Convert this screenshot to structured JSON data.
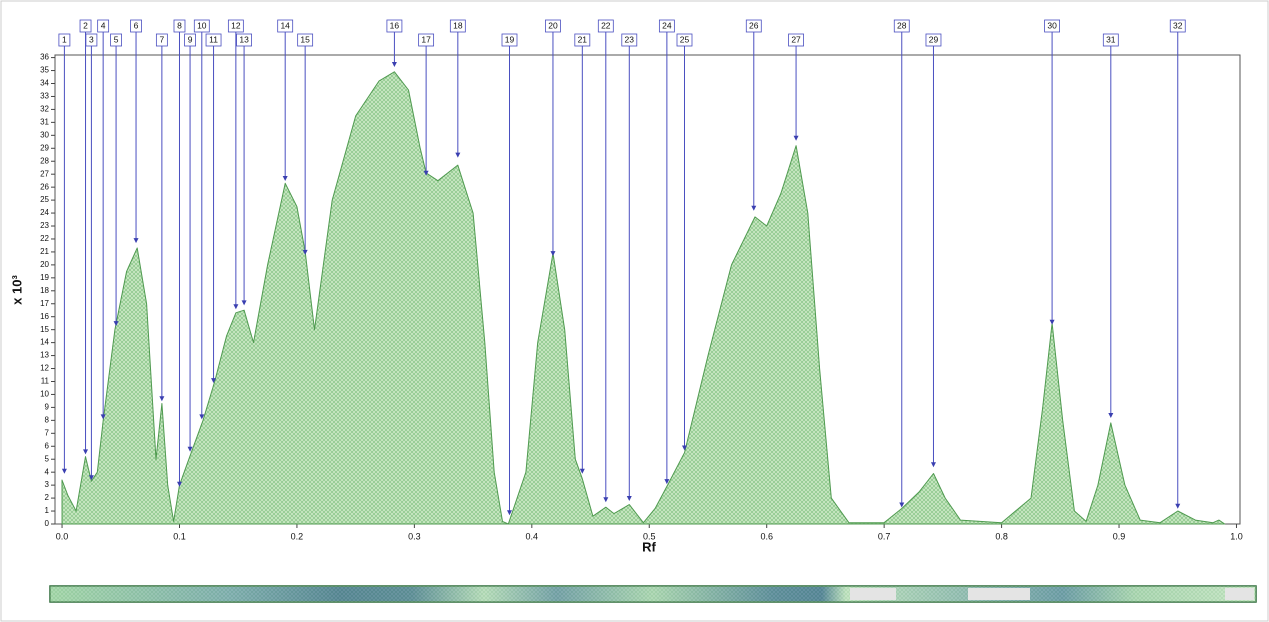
{
  "chart_data": {
    "type": "area",
    "ylabel": "x 10³",
    "xlabel": "Rf",
    "xlim": [
      -0.006,
      1.003
    ],
    "ylim": [
      0,
      36.2
    ],
    "xticks": [
      {
        "value": 0,
        "label": "0.0"
      },
      0.1,
      0.2,
      0.3,
      0.4,
      0.5,
      0.6,
      0.7,
      0.8,
      0.9,
      {
        "value": 1,
        "label": "1.0"
      }
    ],
    "yticks": [
      0,
      1,
      2,
      3,
      4,
      5,
      6,
      7,
      8,
      9,
      10,
      11,
      12,
      13,
      14,
      15,
      16,
      17,
      18,
      19,
      20,
      21,
      22,
      23,
      24,
      25,
      26,
      27,
      28,
      29,
      30,
      31,
      32,
      33,
      34,
      35,
      36
    ],
    "color": "#4f9a4f",
    "x": [
      0,
      0.005,
      0.012,
      0.02,
      0.025,
      0.03,
      0.035,
      0.045,
      0.055,
      0.064,
      0.072,
      0.08,
      0.085,
      0.09,
      0.095,
      0.1,
      0.11,
      0.12,
      0.13,
      0.14,
      0.148,
      0.155,
      0.163,
      0.175,
      0.19,
      0.2,
      0.207,
      0.215,
      0.23,
      0.25,
      0.27,
      0.283,
      0.295,
      0.305,
      0.31,
      0.32,
      0.337,
      0.35,
      0.36,
      0.368,
      0.375,
      0.38,
      0.395,
      0.405,
      0.418,
      0.428,
      0.437,
      0.443,
      0.452,
      0.463,
      0.47,
      0.483,
      0.495,
      0.505,
      0.515,
      0.53,
      0.55,
      0.57,
      0.59,
      0.6,
      0.612,
      0.625,
      0.635,
      0.645,
      0.655,
      0.67,
      0.7,
      0.715,
      0.73,
      0.742,
      0.752,
      0.765,
      0.8,
      0.825,
      0.835,
      0.843,
      0.852,
      0.862,
      0.872,
      0.882,
      0.893,
      0.905,
      0.918,
      0.935,
      0.95,
      0.965,
      0.98,
      0.985,
      0.99
    ],
    "values": [
      3.4,
      2.2,
      1.0,
      5.2,
      3.3,
      4.0,
      8.0,
      15.0,
      19.5,
      21.3,
      17.0,
      5.0,
      9.3,
      3.0,
      0.2,
      3.0,
      5.5,
      8.0,
      11.0,
      14.5,
      16.3,
      16.5,
      14.0,
      20.0,
      26.3,
      24.5,
      21.0,
      15.0,
      25.0,
      31.5,
      34.2,
      34.9,
      33.5,
      29.0,
      27.1,
      26.5,
      27.7,
      24.0,
      14.0,
      4.0,
      0.2,
      0.0,
      4.0,
      14.0,
      20.9,
      15.0,
      5.0,
      3.5,
      0.6,
      1.3,
      0.8,
      1.5,
      0.1,
      1.2,
      2.9,
      5.5,
      13.0,
      20.0,
      23.7,
      23.0,
      25.5,
      29.2,
      24.0,
      12.0,
      2.0,
      0.1,
      0.1,
      1.2,
      2.5,
      3.9,
      2.0,
      0.3,
      0.1,
      2.0,
      9.0,
      15.5,
      8.0,
      1.0,
      0.2,
      3.0,
      7.8,
      3.0,
      0.3,
      0.1,
      1.0,
      0.3,
      0.1,
      0.3,
      0.0
    ],
    "peaks": [
      {
        "label": "1",
        "x": 0.002,
        "y": 3.8
      },
      {
        "label": "2",
        "x": 0.02,
        "y": 5.3
      },
      {
        "label": "3",
        "x": 0.025,
        "y": 3.3
      },
      {
        "label": "4",
        "x": 0.035,
        "y": 8.0
      },
      {
        "label": "5",
        "x": 0.046,
        "y": 15.2
      },
      {
        "label": "6",
        "x": 0.063,
        "y": 21.6
      },
      {
        "label": "7",
        "x": 0.085,
        "y": 9.4
      },
      {
        "label": "8",
        "x": 0.1,
        "y": 2.8
      },
      {
        "label": "9",
        "x": 0.109,
        "y": 5.5
      },
      {
        "label": "10",
        "x": 0.119,
        "y": 8.0
      },
      {
        "label": "11",
        "x": 0.129,
        "y": 10.8
      },
      {
        "label": "12",
        "x": 0.148,
        "y": 16.5
      },
      {
        "label": "13",
        "x": 0.155,
        "y": 16.8
      },
      {
        "label": "14",
        "x": 0.19,
        "y": 26.4
      },
      {
        "label": "15",
        "x": 0.207,
        "y": 20.7
      },
      {
        "label": "16",
        "x": 0.283,
        "y": 35.2
      },
      {
        "label": "17",
        "x": 0.31,
        "y": 26.8
      },
      {
        "label": "18",
        "x": 0.337,
        "y": 28.2
      },
      {
        "label": "19",
        "x": 0.381,
        "y": 0.6
      },
      {
        "label": "20",
        "x": 0.418,
        "y": 20.6
      },
      {
        "label": "21",
        "x": 0.443,
        "y": 3.8
      },
      {
        "label": "22",
        "x": 0.463,
        "y": 1.6
      },
      {
        "label": "23",
        "x": 0.483,
        "y": 1.7
      },
      {
        "label": "24",
        "x": 0.515,
        "y": 3.0
      },
      {
        "label": "25",
        "x": 0.53,
        "y": 5.6
      },
      {
        "label": "26",
        "x": 0.589,
        "y": 24.1
      },
      {
        "label": "27",
        "x": 0.625,
        "y": 29.5
      },
      {
        "label": "28",
        "x": 0.715,
        "y": 1.2
      },
      {
        "label": "29",
        "x": 0.742,
        "y": 4.3
      },
      {
        "label": "30",
        "x": 0.843,
        "y": 15.3
      },
      {
        "label": "31",
        "x": 0.893,
        "y": 8.1
      },
      {
        "label": "32",
        "x": 0.95,
        "y": 1.1
      }
    ]
  }
}
